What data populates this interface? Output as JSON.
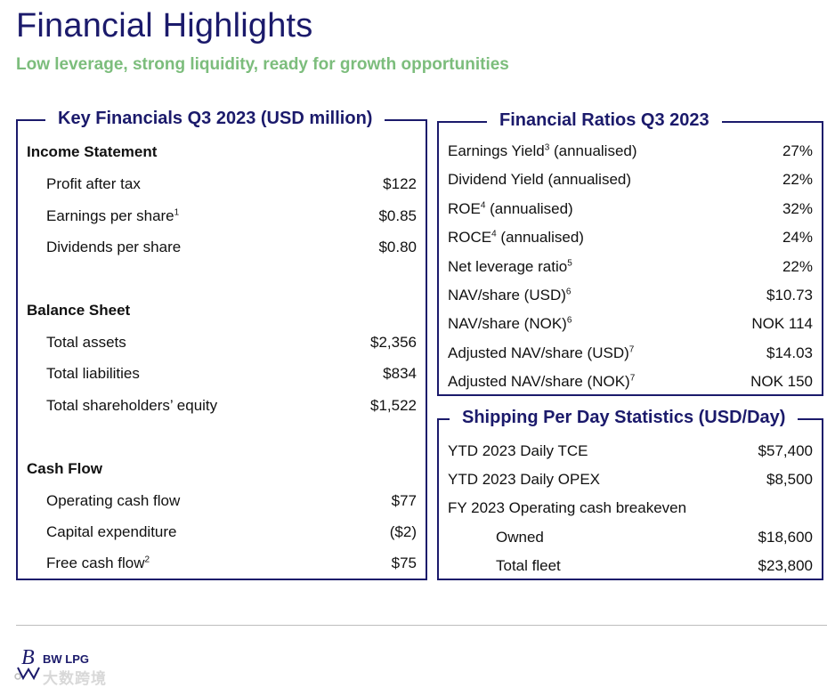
{
  "header": {
    "title": "Financial Highlights",
    "subtitle": "Low leverage, strong liquidity, ready for growth opportunities"
  },
  "key_financials": {
    "title": "Key Financials Q3 2023 (USD million)",
    "income_statement": {
      "heading": "Income Statement",
      "rows": [
        {
          "label": "Profit after tax",
          "sup": "",
          "value": "$122"
        },
        {
          "label": "Earnings per share",
          "sup": "1",
          "value": "$0.85"
        },
        {
          "label": "Dividends per share",
          "sup": "",
          "value": "$0.80"
        }
      ]
    },
    "balance_sheet": {
      "heading": "Balance Sheet",
      "rows": [
        {
          "label": "Total assets",
          "sup": "",
          "value": "$2,356"
        },
        {
          "label": "Total liabilities",
          "sup": "",
          "value": "$834"
        },
        {
          "label": "Total shareholders’ equity",
          "sup": "",
          "value": "$1,522"
        }
      ]
    },
    "cash_flow": {
      "heading": "Cash Flow",
      "rows": [
        {
          "label": "Operating cash flow",
          "sup": "",
          "value": "$77"
        },
        {
          "label": "Capital expenditure",
          "sup": "",
          "value": "($2)"
        },
        {
          "label": "Free cash flow",
          "sup": "2",
          "value": "$75"
        }
      ]
    }
  },
  "financial_ratios": {
    "title": "Financial Ratios Q3 2023",
    "rows": [
      {
        "label": "Earnings Yield",
        "sup": "3",
        "suffix": " (annualised)",
        "value": "27%"
      },
      {
        "label": "Dividend Yield (annualised)",
        "sup": "",
        "suffix": "",
        "value": "22%"
      },
      {
        "label": "ROE",
        "sup": "4",
        "suffix": " (annualised)",
        "value": "32%"
      },
      {
        "label": "ROCE",
        "sup": "4",
        "suffix": " (annualised)",
        "value": "24%"
      },
      {
        "label": "Net leverage ratio",
        "sup": "5",
        "suffix": "",
        "value": "22%"
      },
      {
        "label": "NAV/share (USD)",
        "sup": "6",
        "suffix": "",
        "value": "$10.73"
      },
      {
        "label": "NAV/share (NOK)",
        "sup": "6",
        "suffix": "",
        "value": "NOK 114"
      },
      {
        "label": "Adjusted NAV/share (USD)",
        "sup": "7",
        "suffix": "",
        "value": "$14.03"
      },
      {
        "label": "Adjusted NAV/share (NOK)",
        "sup": "7",
        "suffix": "",
        "value": "NOK 150"
      }
    ]
  },
  "shipping_stats": {
    "title": "Shipping Per Day Statistics (USD/Day)",
    "rows": [
      {
        "label": "YTD 2023 Daily TCE",
        "value": "$57,400"
      },
      {
        "label": "YTD 2023 Daily OPEX",
        "value": "$8,500"
      },
      {
        "label": "FY 2023 Operating cash breakeven",
        "value": ""
      },
      {
        "label": "Owned",
        "value": "$18,600"
      },
      {
        "label": "Total fleet",
        "value": "$23,800"
      }
    ]
  },
  "footer": {
    "logo_text": "BW LPG",
    "watermark": "大数跨境"
  },
  "colors": {
    "navy": "#1b1a6b",
    "green_subtitle": "#7cbd7c",
    "divider": "#bdbdbd"
  }
}
